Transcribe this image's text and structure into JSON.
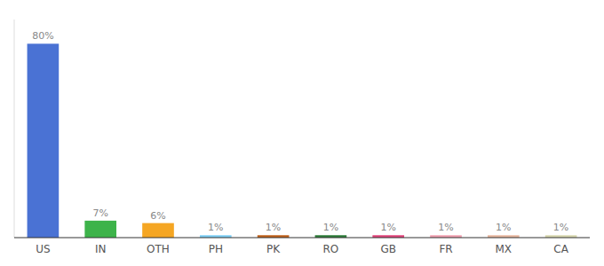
{
  "chart_data": {
    "type": "bar",
    "categories": [
      "US",
      "IN",
      "OTH",
      "PH",
      "PK",
      "RO",
      "GB",
      "FR",
      "MX",
      "CA"
    ],
    "values": [
      80,
      7,
      6,
      1,
      1,
      1,
      1,
      1,
      1,
      1
    ],
    "value_labels": [
      "80%",
      "7%",
      "6%",
      "1%",
      "1%",
      "1%",
      "1%",
      "1%",
      "1%",
      "1%"
    ],
    "colors": [
      "#4a72d4",
      "#3db34a",
      "#f5a623",
      "#7ecef4",
      "#c0621c",
      "#2e7d3a",
      "#e0457b",
      "#f0a0b0",
      "#e8b8a0",
      "#d8d8b0"
    ],
    "ylim": [
      0,
      90
    ],
    "grid": false,
    "data_labels": true,
    "tick_labels": "x"
  }
}
